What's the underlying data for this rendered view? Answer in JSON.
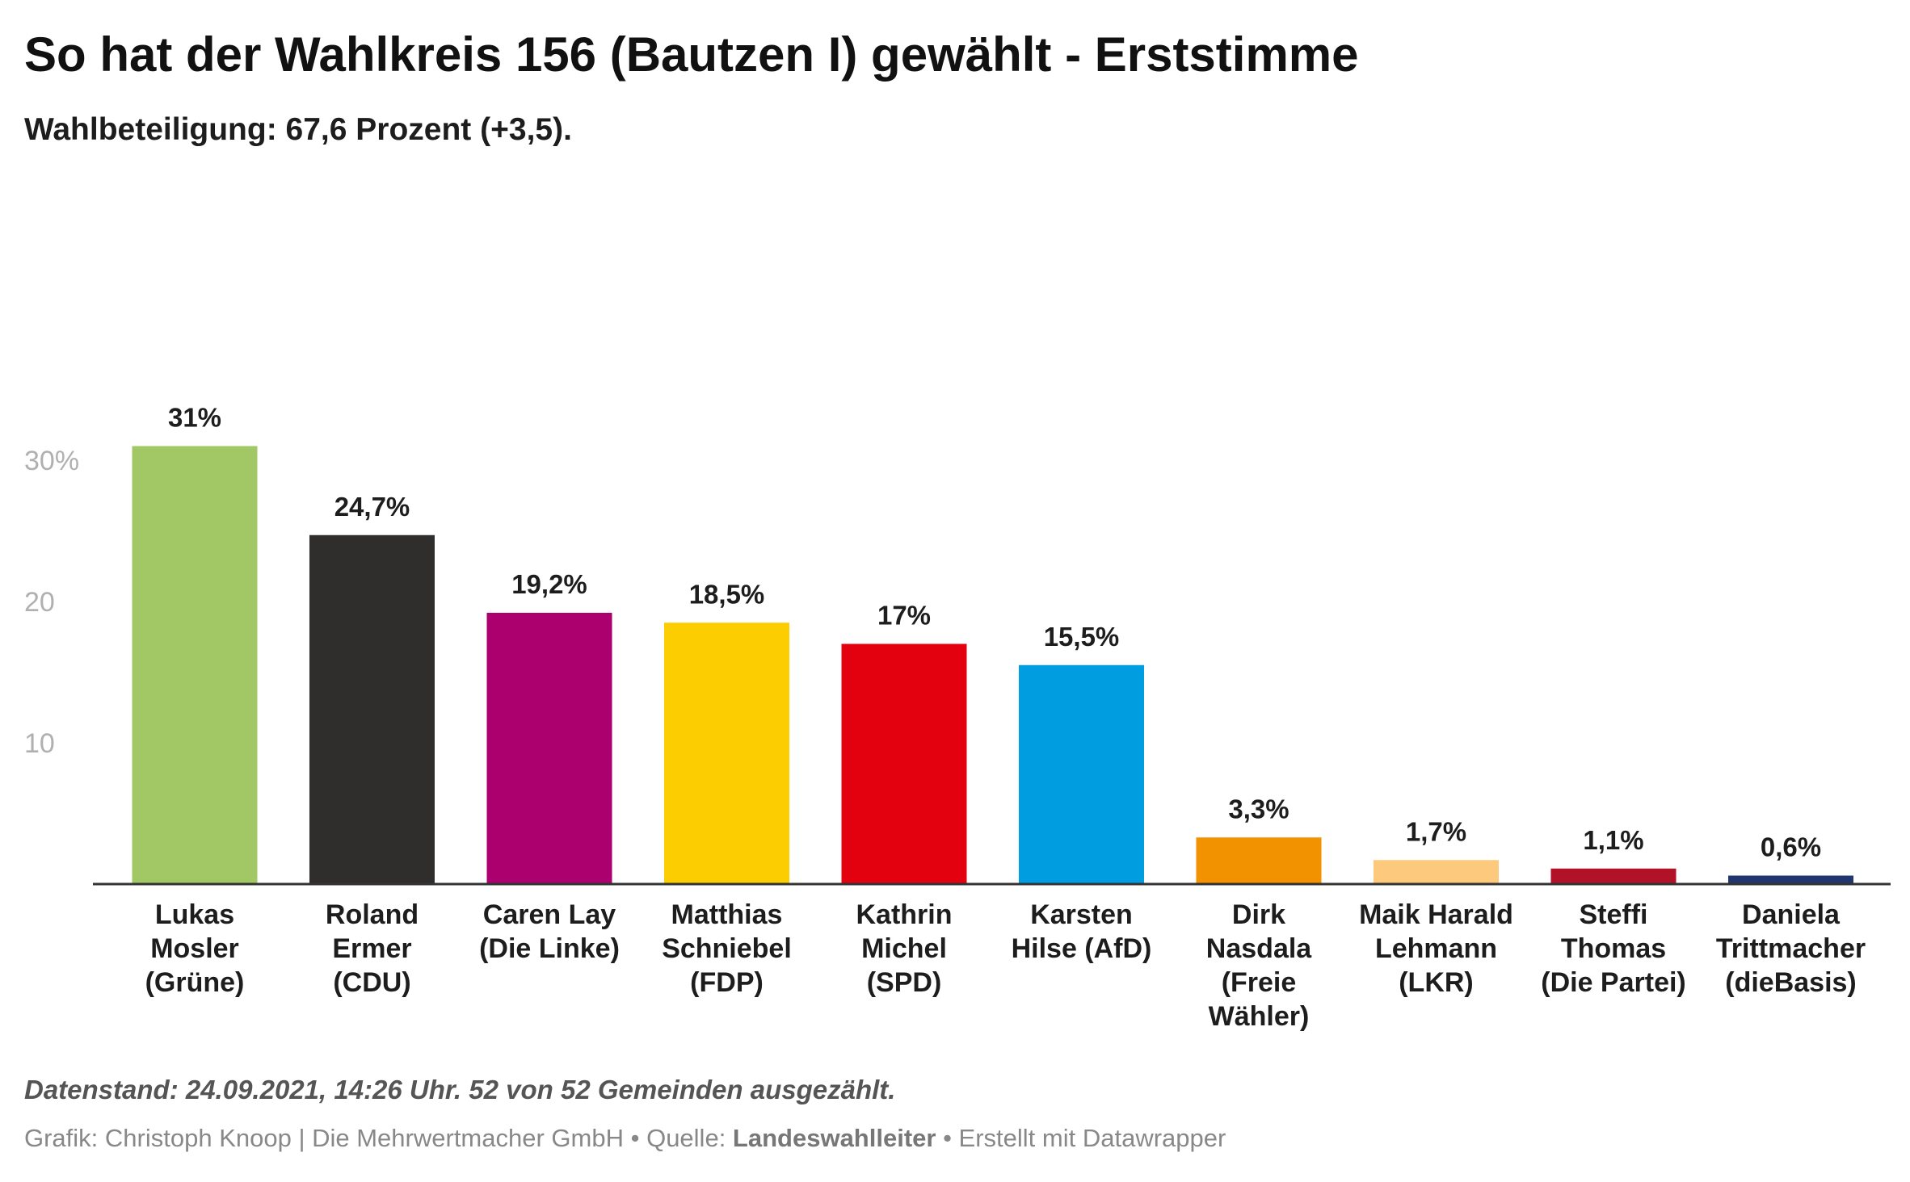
{
  "header": {
    "title": "So hat der Wahlkreis 156 (Bautzen I) gewählt - Erststimme",
    "subtitle": "Wahlbeteiligung: 67,6 Prozent (+3,5)."
  },
  "chart_data": {
    "type": "bar",
    "title": "So hat der Wahlkreis 156 (Bautzen I) gewählt - Erststimme",
    "subtitle": "Wahlbeteiligung: 67,6 Prozent (+3,5).",
    "ylim": [
      0,
      31
    ],
    "yticks": [
      {
        "value": 10,
        "label": "10"
      },
      {
        "value": 20,
        "label": "20"
      },
      {
        "value": 30,
        "label": "30%"
      }
    ],
    "grid": false,
    "categories": [
      [
        "Lukas",
        "Mosler",
        "(Grüne)"
      ],
      [
        "Roland",
        "Ermer",
        "(CDU)"
      ],
      [
        "Caren Lay",
        "(Die Linke)"
      ],
      [
        "Matthias",
        "Schniebel",
        "(FDP)"
      ],
      [
        "Kathrin",
        "Michel",
        "(SPD)"
      ],
      [
        "Karsten",
        "Hilse (AfD)"
      ],
      [
        "Dirk",
        "Nasdala",
        "(Freie",
        "Wähler)"
      ],
      [
        "Maik Harald",
        "Lehmann",
        "(LKR)"
      ],
      [
        "Steffi",
        "Thomas",
        "(Die Partei)"
      ],
      [
        "Daniela",
        "Trittmacher",
        "(dieBasis)"
      ]
    ],
    "values": [
      31,
      24.7,
      19.2,
      18.5,
      17,
      15.5,
      3.3,
      1.7,
      1.1,
      0.6
    ],
    "value_labels": [
      "31%",
      "24,7%",
      "19,2%",
      "18,5%",
      "17%",
      "15,5%",
      "3,3%",
      "1,7%",
      "1,1%",
      "0,6%"
    ],
    "colors": [
      "#a2c866",
      "#302e2c",
      "#ab006d",
      "#fccd00",
      "#e3000f",
      "#009ee0",
      "#f39200",
      "#fdc97c",
      "#b11228",
      "#21356f"
    ]
  },
  "notes": "Datenstand: 24.09.2021, 14:26 Uhr. 52 von 52 Gemeinden ausgezählt.",
  "footer": {
    "graphic_label": "Grafik: Christoph Knoop | Die Mehrwertmacher GmbH",
    "separator": " • ",
    "source_prefix": "Quelle: ",
    "source": "Landeswahlleiter",
    "created_with": "Erstellt mit Datawrapper"
  }
}
